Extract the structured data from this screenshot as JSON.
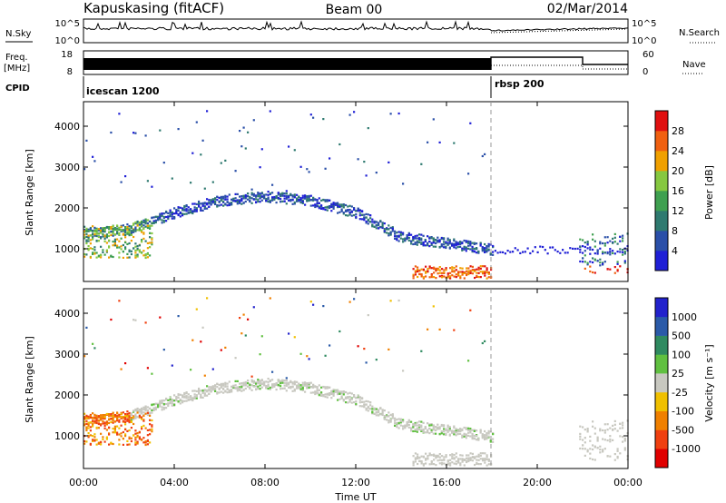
{
  "header": {
    "station": "Kapuskasing (fitACF)",
    "beam": "Beam 00",
    "date": "02/Mar/2014"
  },
  "strip_labels": {
    "nsky": "N.Sky",
    "nsky_top": "10^5",
    "nsky_bottom": "10^0",
    "nsearch": "N.Search",
    "freq": "Freq.",
    "freq_unit": "[MHz]",
    "freq_top": "18",
    "freq_bottom": "8",
    "nave": "Nave",
    "nave_top": "60",
    "nave_bottom": "0",
    "cpid": "CPID",
    "cpid_modes": [
      "icescan 1200",
      "rbsp 200"
    ]
  },
  "colors": {
    "power": [
      "#1f1fd6",
      "#2a4fa8",
      "#2f7a70",
      "#3fa050",
      "#86c840",
      "#f0a000",
      "#f06010",
      "#e01010"
    ],
    "velocity": [
      "#2222cc",
      "#2a5aa8",
      "#2f8a60",
      "#60c040",
      "#c8c8c0",
      "#f0c000",
      "#f08000",
      "#f04010",
      "#e00000"
    ]
  },
  "chart_data": [
    {
      "type": "heatmap",
      "name": "power",
      "ylabel": "Slant Range [km]",
      "yticks": [
        1000,
        2000,
        3000,
        4000
      ],
      "ylim": [
        200,
        4600
      ],
      "xlim_hours": [
        0,
        24
      ],
      "colorbar_label": "Power [dB]",
      "colorbar_ticks": [
        "4",
        "8",
        "12",
        "16",
        "20",
        "24",
        "28"
      ],
      "colorbar_range": [
        0,
        32
      ],
      "features": [
        {
          "desc": "ionospheric band",
          "range_km_at_hour": [
            [
              0,
              1400
            ],
            [
              2,
              1500
            ],
            [
              4,
              1900
            ],
            [
              6,
              2200
            ],
            [
              8,
              2300
            ],
            [
              10,
              2200
            ],
            [
              12,
              1900
            ],
            [
              14,
              1300
            ],
            [
              18,
              1000
            ]
          ]
        },
        {
          "desc": "near-range ground scatter",
          "range_km": [
            300,
            600
          ],
          "hours": [
            14.5,
            18
          ]
        },
        {
          "desc": "late-day band",
          "range_km": [
            400,
            1200
          ],
          "hours": [
            22,
            24
          ]
        }
      ]
    },
    {
      "type": "heatmap",
      "name": "velocity",
      "ylabel": "Slant Range [km]",
      "yticks": [
        1000,
        2000,
        3000,
        4000
      ],
      "ylim": [
        200,
        4600
      ],
      "xlim_hours": [
        0,
        24
      ],
      "colorbar_label": "Velocity [m s⁻¹]",
      "colorbar_ticks": [
        "1000",
        "500",
        "100",
        "25",
        "-25",
        "-100",
        "-500",
        "-1000"
      ],
      "colorbar_range": [
        -1250,
        1250
      ]
    }
  ],
  "x_axis": {
    "ticks": [
      "00:00",
      "04:00",
      "08:00",
      "12:00",
      "16:00",
      "20:00",
      "00:00"
    ],
    "label": "Time UT"
  }
}
